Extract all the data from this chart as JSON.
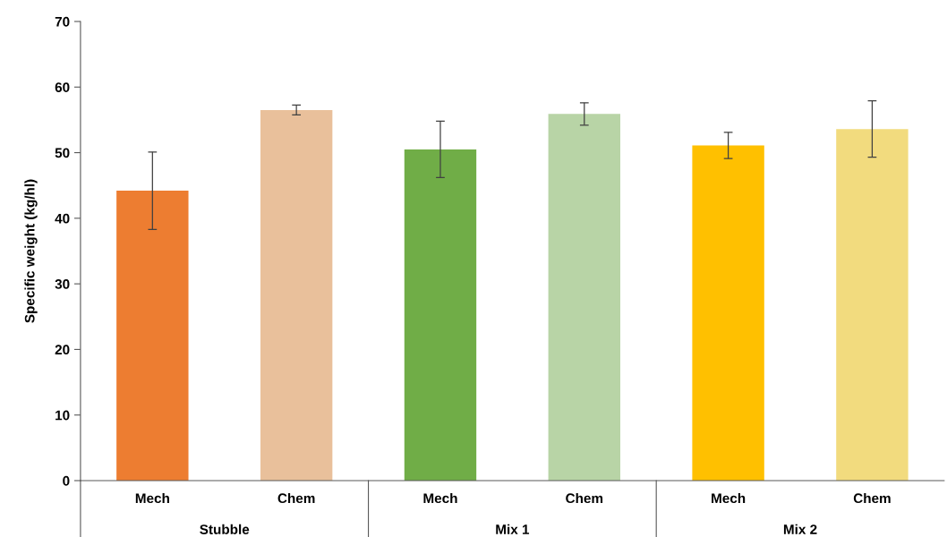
{
  "chart_data": {
    "type": "bar",
    "ylabel": "Specific weight (kg/hl)",
    "categories": [
      "Mech",
      "Chem",
      "Mech",
      "Chem",
      "Mech",
      "Chem"
    ],
    "values": [
      44.2,
      56.5,
      50.5,
      55.9,
      51.1,
      53.6
    ],
    "errors": [
      5.9,
      0.75,
      4.3,
      1.7,
      2.0,
      4.3
    ],
    "colors": [
      "#ed7d31",
      "#e9c09b",
      "#70ad47",
      "#b8d4a6",
      "#ffc000",
      "#f2db7e"
    ],
    "ylim": [
      0,
      70
    ],
    "yticks": [
      0,
      10,
      20,
      30,
      40,
      50,
      60,
      70
    ],
    "annotations": [
      "Stubble",
      "Mix 1",
      "Mix 2"
    ],
    "grid": false
  }
}
